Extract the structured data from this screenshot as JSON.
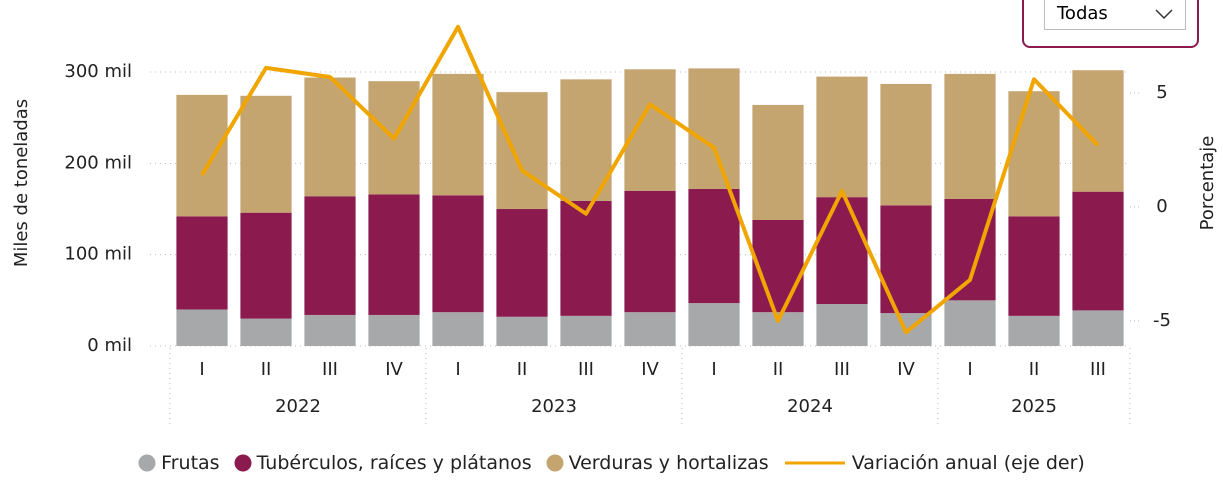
{
  "filter": {
    "label": "Todas"
  },
  "chart_data": {
    "type": "bar",
    "stacked": true,
    "y_label": "Miles de toneladas",
    "y2_label": "Porcentaje",
    "categories": [
      "I",
      "II",
      "III",
      "IV",
      "I",
      "II",
      "III",
      "IV",
      "I",
      "II",
      "III",
      "IV",
      "I",
      "II",
      "III"
    ],
    "groups": [
      {
        "label": "2022",
        "count": 4
      },
      {
        "label": "2023",
        "count": 4
      },
      {
        "label": "2024",
        "count": 4
      },
      {
        "label": "2025",
        "count": 3
      }
    ],
    "series": [
      {
        "name": "Frutas",
        "color": "#a7a8aa",
        "values": [
          40,
          30,
          34,
          34,
          37,
          32,
          33,
          37,
          47,
          37,
          46,
          36,
          50,
          33,
          39
        ]
      },
      {
        "name": "Tubérculos, raíces y plátanos",
        "color": "#8b1a4f",
        "values": [
          102,
          116,
          130,
          132,
          128,
          118,
          126,
          133,
          125,
          101,
          117,
          118,
          111,
          109,
          130
        ]
      },
      {
        "name": "Verduras y hortalizas",
        "color": "#c4a46f",
        "values": [
          133,
          128,
          130,
          124,
          133,
          128,
          133,
          133,
          132,
          126,
          132,
          133,
          137,
          137,
          133
        ]
      },
      {
        "name": "Variación anual (eje der)",
        "color": "#f0a500",
        "type": "line",
        "axis": "y2",
        "values": [
          1.4,
          6.1,
          5.7,
          3.0,
          7.9,
          1.6,
          -0.3,
          4.5,
          2.6,
          -5.0,
          0.7,
          -5.5,
          -3.2,
          5.6,
          2.7
        ]
      }
    ],
    "ylim": [
      0,
      357
    ],
    "yticks": [
      {
        "value": 0,
        "label": "0 mil"
      },
      {
        "value": 100,
        "label": "100 mil"
      },
      {
        "value": 200,
        "label": "200 mil"
      },
      {
        "value": 300,
        "label": "300 mil"
      }
    ],
    "y2lim": [
      -6.1,
      8.2
    ],
    "y2ticks": [
      -5,
      0,
      5
    ],
    "grid": true,
    "legend": "bottom"
  }
}
